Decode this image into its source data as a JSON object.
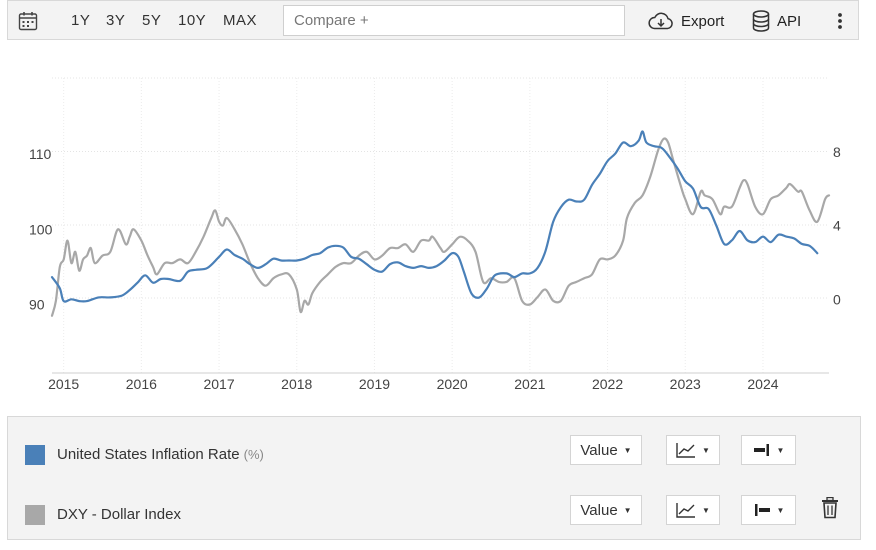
{
  "toolbar": {
    "ranges": [
      "1Y",
      "3Y",
      "5Y",
      "10Y",
      "MAX"
    ],
    "compare_placeholder": "Compare +",
    "export_label": "Export",
    "api_label": "API",
    "icons": {
      "calendar": "calendar-icon",
      "export": "cloud-download-icon",
      "api": "database-icon",
      "more": "more-vertical-icon"
    }
  },
  "legend": {
    "series": [
      {
        "name": "United States Inflation Rate",
        "unit": "(%)",
        "color": "#4a80b8",
        "mode_label": "Value",
        "chart_type_icon": "line-chart-icon",
        "axis_icon": "axis-right-icon"
      },
      {
        "name": "DXY - Dollar Index",
        "unit": "",
        "color": "#a8a8a8",
        "mode_label": "Value",
        "chart_type_icon": "line-chart-icon",
        "axis_icon": "axis-left-icon",
        "delete_icon": "trash-icon"
      }
    ]
  },
  "chart_data": {
    "type": "line",
    "xlim": [
      2014.85,
      2024.85
    ],
    "x_ticks": [
      2015,
      2016,
      2017,
      2018,
      2019,
      2020,
      2021,
      2022,
      2023,
      2024
    ],
    "left_axis": {
      "ticks": [
        90,
        100,
        110
      ],
      "range": [
        80.9,
        120.1
      ]
    },
    "right_axis": {
      "ticks": [
        0,
        4,
        8
      ],
      "range": [
        -4,
        12
      ]
    },
    "grid": true,
    "legend_placement": "bottom",
    "series": [
      {
        "name": "United States Inflation Rate",
        "axis": "right",
        "color": "#4a80b8",
        "x": [
          2014.85,
          2014.95,
          2015.0,
          2015.1,
          2015.2,
          2015.3,
          2015.45,
          2015.6,
          2015.75,
          2015.85,
          2015.95,
          2016.05,
          2016.15,
          2016.25,
          2016.35,
          2016.5,
          2016.6,
          2016.7,
          2016.85,
          2017.0,
          2017.1,
          2017.2,
          2017.3,
          2017.4,
          2017.5,
          2017.6,
          2017.7,
          2017.8,
          2017.9,
          2018.0,
          2018.1,
          2018.2,
          2018.3,
          2018.4,
          2018.5,
          2018.6,
          2018.7,
          2018.8,
          2018.9,
          2019.0,
          2019.1,
          2019.2,
          2019.3,
          2019.4,
          2019.5,
          2019.6,
          2019.7,
          2019.8,
          2019.9,
          2020.0,
          2020.08,
          2020.15,
          2020.25,
          2020.35,
          2020.45,
          2020.55,
          2020.7,
          2020.8,
          2020.9,
          2021.0,
          2021.1,
          2021.2,
          2021.3,
          2021.4,
          2021.5,
          2021.6,
          2021.7,
          2021.8,
          2021.9,
          2022.0,
          2022.1,
          2022.2,
          2022.3,
          2022.4,
          2022.45,
          2022.5,
          2022.6,
          2022.7,
          2022.8,
          2022.9,
          2023.0,
          2023.1,
          2023.2,
          2023.3,
          2023.4,
          2023.5,
          2023.6,
          2023.7,
          2023.8,
          2023.9,
          2024.0,
          2024.1,
          2024.2,
          2024.3,
          2024.4,
          2024.5,
          2024.6,
          2024.7
        ],
        "values": [
          1.2,
          0.6,
          -0.1,
          0.0,
          -0.1,
          -0.1,
          0.1,
          0.1,
          0.2,
          0.5,
          0.9,
          1.3,
          0.9,
          1.1,
          1.1,
          1.0,
          1.5,
          1.6,
          1.7,
          2.3,
          2.7,
          2.4,
          2.2,
          1.9,
          1.7,
          1.9,
          2.2,
          2.1,
          2.1,
          2.1,
          2.2,
          2.4,
          2.5,
          2.8,
          2.9,
          2.8,
          2.3,
          2.2,
          1.9,
          1.6,
          1.5,
          1.9,
          2.0,
          1.8,
          1.7,
          1.8,
          1.7,
          1.8,
          2.1,
          2.5,
          2.3,
          1.5,
          0.3,
          0.1,
          0.6,
          1.3,
          1.4,
          1.2,
          1.4,
          1.4,
          1.7,
          2.6,
          4.2,
          5.0,
          5.4,
          5.3,
          5.4,
          6.2,
          6.8,
          7.5,
          7.9,
          8.5,
          8.3,
          8.6,
          9.1,
          8.5,
          8.3,
          8.2,
          7.7,
          7.1,
          6.4,
          6.0,
          5.0,
          4.9,
          4.0,
          3.0,
          3.2,
          3.7,
          3.2,
          3.1,
          3.4,
          3.1,
          3.5,
          3.4,
          3.3,
          3.0,
          2.9,
          2.5
        ]
      },
      {
        "name": "DXY - Dollar Index",
        "axis": "left",
        "color": "#a8a8a8",
        "x": [
          2014.85,
          2014.9,
          2014.95,
          2015.0,
          2015.05,
          2015.1,
          2015.15,
          2015.2,
          2015.25,
          2015.3,
          2015.35,
          2015.4,
          2015.5,
          2015.6,
          2015.7,
          2015.8,
          2015.85,
          2015.9,
          2016.0,
          2016.08,
          2016.15,
          2016.2,
          2016.3,
          2016.4,
          2016.5,
          2016.6,
          2016.7,
          2016.8,
          2016.9,
          2016.95,
          2017.0,
          2017.05,
          2017.1,
          2017.2,
          2017.3,
          2017.4,
          2017.5,
          2017.6,
          2017.7,
          2017.8,
          2017.9,
          2018.0,
          2018.05,
          2018.1,
          2018.15,
          2018.2,
          2018.3,
          2018.4,
          2018.5,
          2018.6,
          2018.7,
          2018.8,
          2018.9,
          2019.0,
          2019.1,
          2019.2,
          2019.3,
          2019.4,
          2019.5,
          2019.6,
          2019.7,
          2019.75,
          2019.85,
          2019.9,
          2020.0,
          2020.1,
          2020.2,
          2020.3,
          2020.4,
          2020.5,
          2020.6,
          2020.7,
          2020.8,
          2020.9,
          2021.0,
          2021.1,
          2021.2,
          2021.3,
          2021.4,
          2021.5,
          2021.6,
          2021.7,
          2021.8,
          2021.9,
          2022.0,
          2022.1,
          2022.2,
          2022.25,
          2022.35,
          2022.45,
          2022.55,
          2022.65,
          2022.72,
          2022.78,
          2022.85,
          2022.95,
          2023.0,
          2023.1,
          2023.2,
          2023.25,
          2023.35,
          2023.45,
          2023.5,
          2023.6,
          2023.7,
          2023.75,
          2023.8,
          2023.9,
          2024.0,
          2024.1,
          2024.2,
          2024.3,
          2024.35,
          2024.45,
          2024.5,
          2024.6,
          2024.7,
          2024.8,
          2024.85
        ],
        "values": [
          88.5,
          90.5,
          95.0,
          96.0,
          98.5,
          95.5,
          97.0,
          94.5,
          96.0,
          96.5,
          97.5,
          95.5,
          96.5,
          97.0,
          100.0,
          98.0,
          99.0,
          100.0,
          98.5,
          96.5,
          95.0,
          94.0,
          95.5,
          95.5,
          96.0,
          95.5,
          97.0,
          99.0,
          101.5,
          102.5,
          101.0,
          100.5,
          101.5,
          100.0,
          98.0,
          95.5,
          93.5,
          92.5,
          93.5,
          94.0,
          94.0,
          92.0,
          89.0,
          90.5,
          90.0,
          91.5,
          93.0,
          94.0,
          95.0,
          95.5,
          95.5,
          96.5,
          97.0,
          96.0,
          96.5,
          97.5,
          97.5,
          98.0,
          97.0,
          98.5,
          98.5,
          99.0,
          97.5,
          97.0,
          98.0,
          99.0,
          98.5,
          97.0,
          93.0,
          93.5,
          93.0,
          93.0,
          93.5,
          90.5,
          90.0,
          91.0,
          92.0,
          90.5,
          90.5,
          92.5,
          93.0,
          93.5,
          94.0,
          96.0,
          96.0,
          96.5,
          98.5,
          101.5,
          103.5,
          104.5,
          107.0,
          110.5,
          112.0,
          111.5,
          109.0,
          105.5,
          104.0,
          102.0,
          105.0,
          104.5,
          104.0,
          102.0,
          103.0,
          103.0,
          105.5,
          106.5,
          106.0,
          103.0,
          102.0,
          104.0,
          104.5,
          105.5,
          106.0,
          105.0,
          105.0,
          102.5,
          101.0,
          104.0,
          104.5
        ]
      }
    ]
  }
}
